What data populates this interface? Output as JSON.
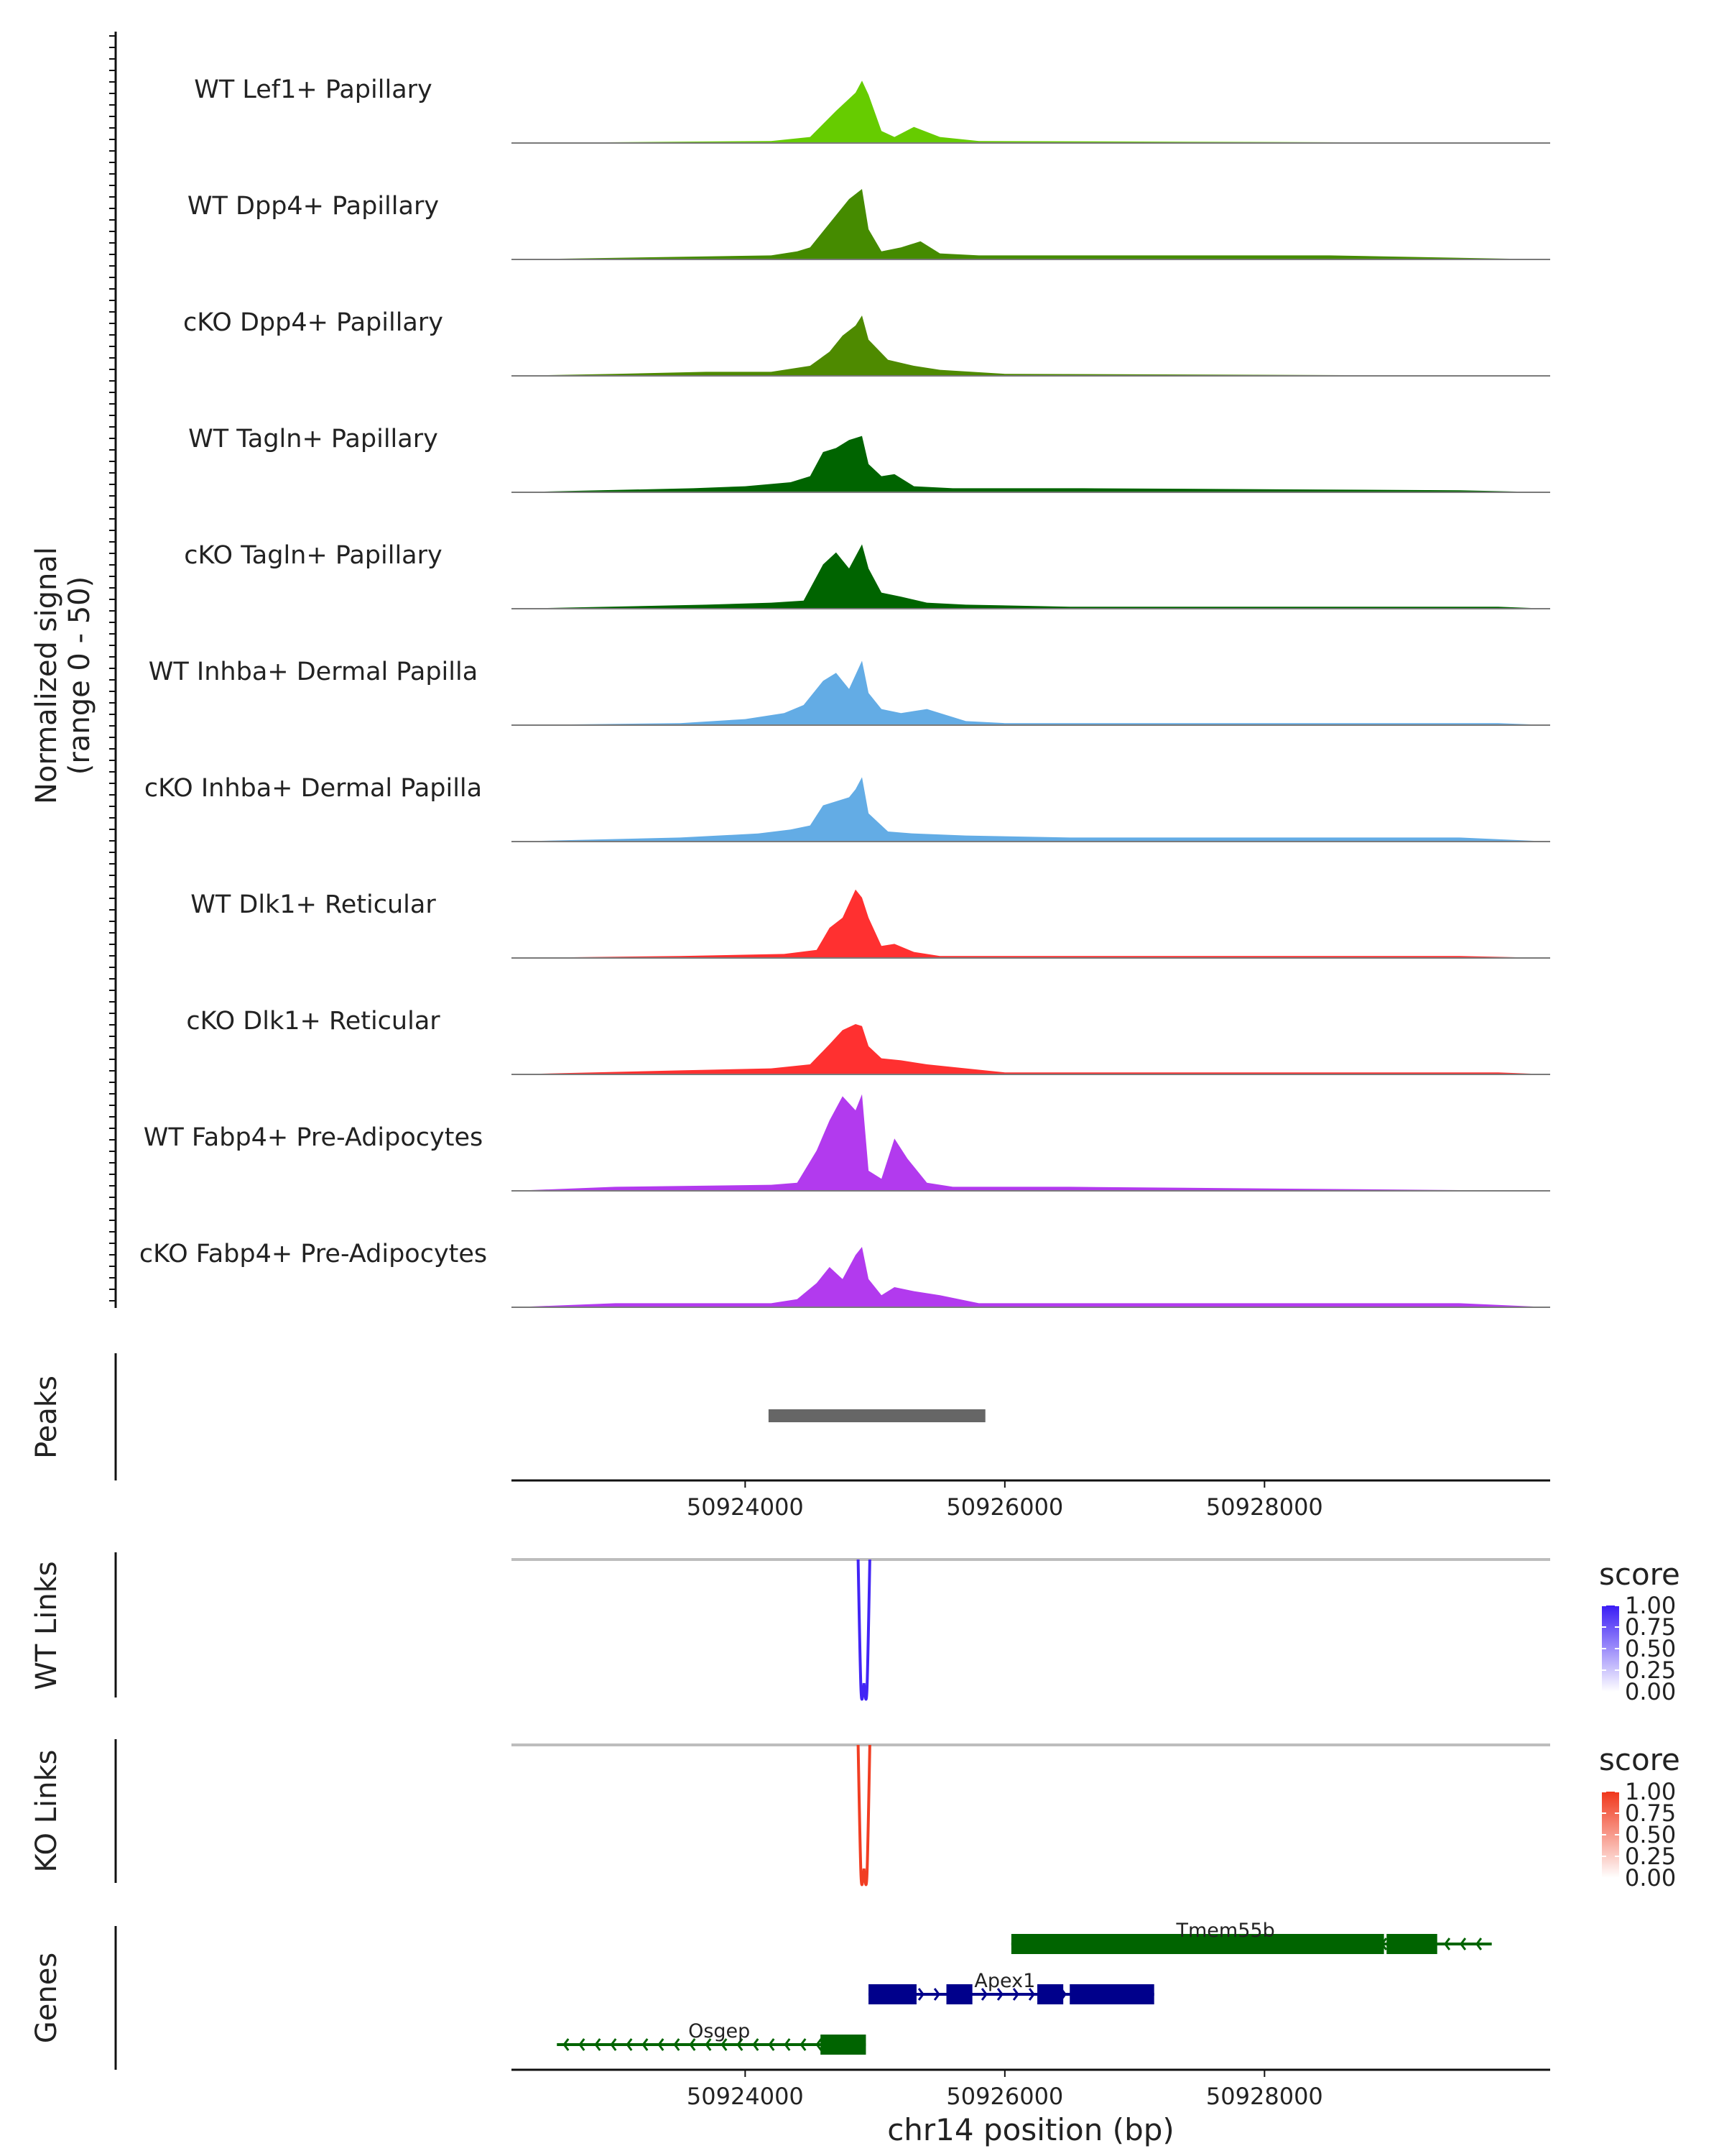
{
  "chart_data": {
    "type": "area",
    "title": "",
    "xlabel": "chr14 position (bp)",
    "xlim": [
      50922200,
      50930200
    ],
    "xticks": [
      50924000,
      50926000,
      50928000
    ],
    "xtick_labels": [
      "50924000",
      "50926000",
      "50928000"
    ],
    "coverage_ylabel": [
      "Normalized signal",
      "(range 0 - 50)"
    ],
    "coverage_range": [
      0,
      50
    ],
    "tracks": [
      {
        "name": "WT Lef1+ Papillary",
        "color": "#66CC00",
        "x": [
          50922200,
          50924200,
          50924500,
          50924700,
          50924850,
          50924900,
          50924950,
          50925050,
          50925150,
          50925300,
          50925500,
          50925800,
          50930200
        ],
        "y": [
          0,
          1,
          3,
          16,
          25,
          31,
          24,
          6,
          3,
          8,
          3,
          1,
          0
        ]
      },
      {
        "name": "WT Dpp4+ Papillary",
        "color": "#458B00",
        "x": [
          50922200,
          50924200,
          50924400,
          50924500,
          50924650,
          50924800,
          50924900,
          50924950,
          50925050,
          50925200,
          50925350,
          50925500,
          50925800,
          50927500,
          50928500,
          50930200
        ],
        "y": [
          0,
          2,
          4,
          6,
          18,
          30,
          35,
          15,
          4,
          6,
          9,
          3,
          2,
          2,
          2,
          0
        ]
      },
      {
        "name": "cKO Dpp4+ Papillary",
        "color": "#4E8A00",
        "x": [
          50922200,
          50923000,
          50923700,
          50924200,
          50924500,
          50924650,
          50924750,
          50924850,
          50924900,
          50924950,
          50925100,
          50925300,
          50925500,
          50926000,
          50930200
        ],
        "y": [
          0,
          1,
          2,
          2,
          5,
          12,
          20,
          25,
          30,
          18,
          8,
          5,
          3,
          1,
          0
        ]
      },
      {
        "name": "WT Tagln+ Papillary",
        "color": "#006400",
        "x": [
          50922200,
          50923600,
          50924000,
          50924350,
          50924500,
          50924600,
          50924700,
          50924800,
          50924900,
          50924950,
          50925050,
          50925150,
          50925300,
          50925600,
          50926600,
          50929500,
          50930200
        ],
        "y": [
          0,
          2,
          3,
          5,
          8,
          20,
          22,
          26,
          28,
          14,
          8,
          9,
          3,
          2,
          2,
          1,
          0
        ]
      },
      {
        "name": "cKO Tagln+ Papillary",
        "color": "#006400",
        "x": [
          50922200,
          50923700,
          50924200,
          50924450,
          50924600,
          50924700,
          50924800,
          50924900,
          50924950,
          50925050,
          50925200,
          50925400,
          50925700,
          50926500,
          50929800,
          50930200
        ],
        "y": [
          0,
          2,
          3,
          4,
          22,
          28,
          20,
          32,
          20,
          8,
          6,
          3,
          2,
          1,
          1,
          0
        ]
      },
      {
        "name": "WT Inhba+ Dermal Papilla",
        "color": "#63ACE5",
        "x": [
          50922200,
          50923500,
          50924000,
          50924300,
          50924450,
          50924600,
          50924700,
          50924800,
          50924900,
          50924950,
          50925050,
          50925200,
          50925400,
          50925700,
          50926000,
          50929800,
          50930200
        ],
        "y": [
          0,
          1,
          3,
          6,
          10,
          22,
          26,
          18,
          32,
          16,
          8,
          6,
          8,
          2,
          1,
          1,
          0
        ]
      },
      {
        "name": "cKO Inhba+ Dermal Papilla",
        "color": "#63ACE5",
        "x": [
          50922200,
          50923500,
          50924100,
          50924350,
          50924500,
          50924600,
          50924700,
          50924800,
          50924850,
          50924900,
          50924950,
          50925100,
          50925300,
          50925700,
          50926500,
          50929500,
          50930200
        ],
        "y": [
          0,
          2,
          4,
          6,
          8,
          18,
          20,
          22,
          26,
          32,
          14,
          5,
          4,
          3,
          2,
          2,
          0
        ]
      },
      {
        "name": "WT Dlk1+ Reticular",
        "color": "#FF3030",
        "x": [
          50922200,
          50923500,
          50924300,
          50924550,
          50924650,
          50924750,
          50924850,
          50924900,
          50924950,
          50925050,
          50925150,
          50925300,
          50925500,
          50926000,
          50929500,
          50930200
        ],
        "y": [
          0,
          1,
          2,
          4,
          15,
          20,
          34,
          30,
          20,
          6,
          7,
          3,
          1,
          1,
          1,
          0
        ]
      },
      {
        "name": "cKO Dlk1+ Reticular",
        "color": "#FF3030",
        "x": [
          50922200,
          50923500,
          50924200,
          50924500,
          50924650,
          50924750,
          50924850,
          50924900,
          50924950,
          50925050,
          50925200,
          50925400,
          50925700,
          50926000,
          50929800,
          50930200
        ],
        "y": [
          0,
          2,
          3,
          5,
          15,
          22,
          25,
          24,
          14,
          8,
          7,
          5,
          3,
          1,
          1,
          0
        ]
      },
      {
        "name": "WT Fabp4+ Pre-Adipocytes",
        "color": "#B23AEE",
        "x": [
          50922200,
          50923000,
          50924200,
          50924400,
          50924550,
          50924650,
          50924750,
          50924850,
          50924900,
          50924950,
          50925050,
          50925150,
          50925250,
          50925400,
          50925600,
          50926500,
          50930200
        ],
        "y": [
          0,
          2,
          3,
          4,
          20,
          35,
          47,
          40,
          48,
          10,
          6,
          26,
          16,
          4,
          2,
          2,
          0
        ]
      },
      {
        "name": "cKO Fabp4+ Pre-Adipocytes",
        "color": "#B23AEE",
        "x": [
          50922200,
          50923000,
          50924200,
          50924400,
          50924550,
          50924650,
          50924750,
          50924850,
          50924900,
          50924950,
          50925050,
          50925150,
          50925300,
          50925500,
          50925800,
          50926500,
          50929500,
          50930200
        ],
        "y": [
          0,
          2,
          2,
          4,
          12,
          20,
          14,
          26,
          30,
          14,
          6,
          10,
          8,
          6,
          2,
          2,
          2,
          0
        ]
      }
    ],
    "peaks": {
      "ylabel": "Peaks",
      "regions": [
        {
          "start": 50924180,
          "end": 50925850
        }
      ]
    },
    "links": [
      {
        "ylabel": "WT Links",
        "legend_title": "score",
        "colorbar_ticks": [
          "1.00",
          "0.75",
          "0.50",
          "0.25",
          "0.00"
        ],
        "color_high": "#3A1CF5",
        "color_low": "#FFFFFF",
        "arcs": [
          {
            "start": 50924870,
            "end": 50924960,
            "score": 0.9
          }
        ]
      },
      {
        "ylabel": "KO Links",
        "legend_title": "score",
        "colorbar_ticks": [
          "1.00",
          "0.75",
          "0.50",
          "0.25",
          "0.00"
        ],
        "color_high": "#F0361A",
        "color_low": "#FFFFFF",
        "arcs": [
          {
            "start": 50924870,
            "end": 50924960,
            "score": 0.9
          }
        ]
      }
    ],
    "genes": {
      "ylabel": "Genes",
      "list": [
        {
          "name": "Tmem55b",
          "strand": "-",
          "color": "#006400",
          "start": 50926050,
          "end": 50929750,
          "exons": [
            [
              50926050,
              50928920
            ],
            [
              50928940,
              50929330
            ]
          ]
        },
        {
          "name": "Apex1",
          "strand": "+",
          "color": "#00008B",
          "start": 50924950,
          "end": 50927150,
          "exons": [
            [
              50924950,
              50925320
            ],
            [
              50925550,
              50925750
            ],
            [
              50926250,
              50926450
            ],
            [
              50926500,
              50927150
            ]
          ]
        },
        {
          "name": "Osgep",
          "strand": "-",
          "color": "#006400",
          "start": 50922550,
          "end": 50924930,
          "exons": [
            [
              50924580,
              50924930
            ]
          ]
        }
      ]
    }
  }
}
